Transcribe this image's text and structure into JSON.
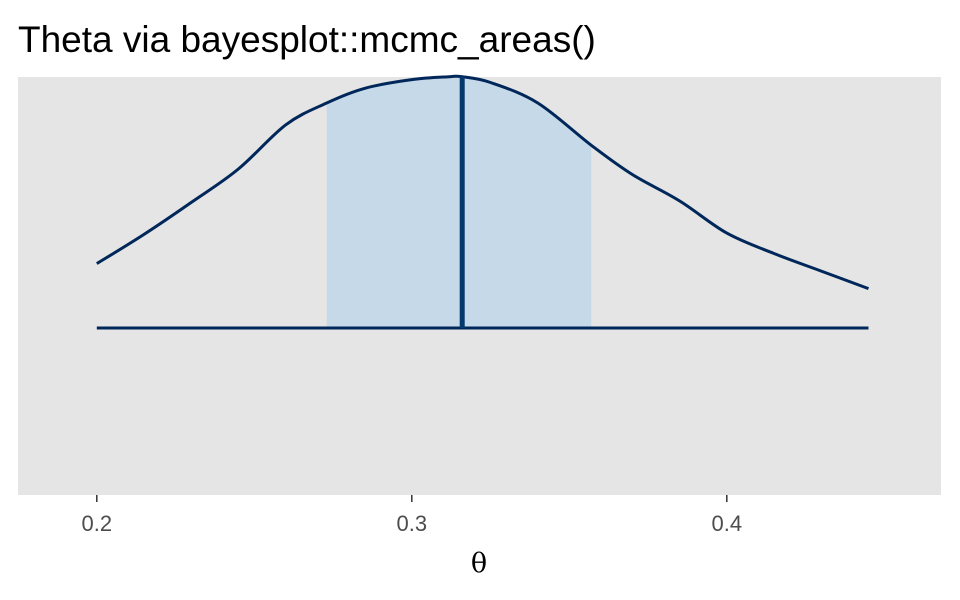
{
  "chart_data": {
    "type": "area",
    "title": "Theta via bayesplot::mcmc_areas()",
    "xlabel": "θ",
    "ylabel": "",
    "xlim": [
      0.175,
      0.468
    ],
    "x_ticks": [
      0.2,
      0.3,
      0.4
    ],
    "x_tick_labels": [
      "0.2",
      "0.3",
      "0.4"
    ],
    "y_axis_shown": false,
    "grid": false,
    "panel_background": "#e5e5e5",
    "series": [
      {
        "density": {
          "x": [
            0.2,
            0.215,
            0.23,
            0.245,
            0.26,
            0.273,
            0.285,
            0.3,
            0.312,
            0.316,
            0.325,
            0.34,
            0.357,
            0.37,
            0.385,
            0.4,
            0.415,
            0.43,
            0.445
          ],
          "y": [
            0.286,
            0.416,
            0.558,
            0.707,
            0.903,
            1.0,
            1.065,
            1.104,
            1.117,
            1.117,
            1.091,
            1.0,
            0.812,
            0.682,
            0.565,
            0.422,
            0.331,
            0.253,
            0.175
          ]
        },
        "inner_interval": [
          0.273,
          0.357
        ],
        "outer_interval": [
          0.2,
          0.445
        ],
        "point_estimate": 0.316
      }
    ],
    "colors": {
      "density_line": "#00275a",
      "interval_fill": "#c6d9e8",
      "point_line": "#03396c",
      "baseline": "#00275a"
    }
  }
}
